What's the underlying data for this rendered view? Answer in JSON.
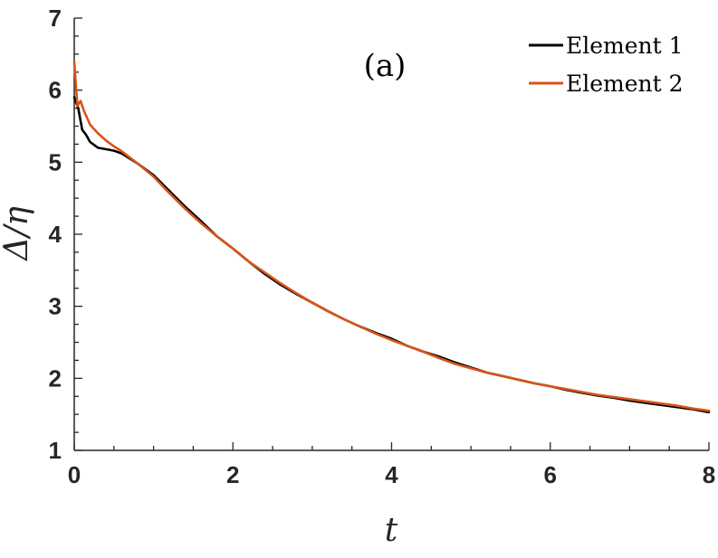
{
  "chart_data": {
    "type": "line",
    "title": "",
    "annotation": "(a)",
    "xlabel": "t",
    "ylabel": "Δ/η",
    "xlim": [
      0,
      8
    ],
    "ylim": [
      1,
      7
    ],
    "xticks": [
      0,
      2,
      4,
      6,
      8
    ],
    "yticks": [
      1,
      2,
      3,
      4,
      5,
      6,
      7
    ],
    "grid": false,
    "legend_position": "top-right",
    "series": [
      {
        "name": "Element 1",
        "color": "#000000",
        "x": [
          0,
          0.05,
          0.1,
          0.15,
          0.2,
          0.3,
          0.4,
          0.5,
          0.6,
          0.8,
          1.0,
          1.2,
          1.4,
          1.6,
          1.8,
          2.0,
          2.2,
          2.4,
          2.6,
          2.8,
          3.0,
          3.2,
          3.4,
          3.6,
          3.8,
          4.0,
          4.2,
          4.4,
          4.6,
          4.8,
          5.0,
          5.2,
          5.4,
          5.6,
          5.8,
          6.0,
          6.2,
          6.4,
          6.6,
          6.8,
          7.0,
          7.2,
          7.4,
          7.6,
          7.8,
          8.0
        ],
        "y": [
          5.9,
          5.75,
          5.45,
          5.38,
          5.28,
          5.2,
          5.18,
          5.16,
          5.12,
          4.98,
          4.82,
          4.6,
          4.38,
          4.18,
          3.97,
          3.8,
          3.62,
          3.45,
          3.3,
          3.17,
          3.05,
          2.93,
          2.82,
          2.72,
          2.63,
          2.55,
          2.45,
          2.37,
          2.3,
          2.22,
          2.15,
          2.08,
          2.03,
          1.98,
          1.93,
          1.89,
          1.84,
          1.8,
          1.76,
          1.73,
          1.69,
          1.66,
          1.63,
          1.6,
          1.57,
          1.53
        ]
      },
      {
        "name": "Element 2",
        "color": "#d95319",
        "x": [
          0,
          0.04,
          0.08,
          0.12,
          0.16,
          0.2,
          0.3,
          0.4,
          0.5,
          0.6,
          0.8,
          1.0,
          1.2,
          1.4,
          1.6,
          1.8,
          2.0,
          2.2,
          2.4,
          2.6,
          2.8,
          3.0,
          3.2,
          3.4,
          3.6,
          3.8,
          4.0,
          4.2,
          4.4,
          4.6,
          4.8,
          5.0,
          5.2,
          5.4,
          5.6,
          5.8,
          6.0,
          6.2,
          6.4,
          6.6,
          6.8,
          7.0,
          7.2,
          7.4,
          7.6,
          7.8,
          8.0
        ],
        "y": [
          6.4,
          5.78,
          5.85,
          5.72,
          5.62,
          5.52,
          5.4,
          5.3,
          5.22,
          5.15,
          4.98,
          4.8,
          4.57,
          4.35,
          4.15,
          3.97,
          3.8,
          3.62,
          3.47,
          3.32,
          3.18,
          3.05,
          2.93,
          2.82,
          2.72,
          2.62,
          2.53,
          2.45,
          2.37,
          2.28,
          2.2,
          2.14,
          2.08,
          2.03,
          1.98,
          1.93,
          1.89,
          1.85,
          1.81,
          1.77,
          1.74,
          1.71,
          1.68,
          1.65,
          1.62,
          1.58,
          1.55
        ]
      }
    ]
  }
}
